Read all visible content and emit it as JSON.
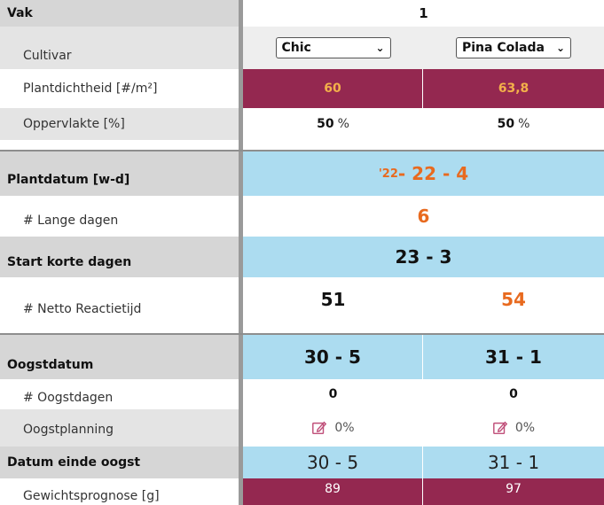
{
  "labels": {
    "vak": "Vak",
    "cultivar": "Cultivar",
    "plantdichtheid": "Plantdichtheid [#/m²]",
    "oppervlakte": "Oppervlakte [%]",
    "plantdatum": "Plantdatum [w-d]",
    "lange_dagen": "# Lange dagen",
    "start_korte_dagen": "Start korte dagen",
    "netto_reactietijd": "# Netto Reactietijd",
    "oogstdatum": "Oogstdatum",
    "oogstdagen": "# Oogstdagen",
    "oogstplanning": "Oogstplanning",
    "datum_einde_oogst": "Datum einde oogst",
    "gewichtsprognose": "Gewichtsprognose [g]"
  },
  "vak_number": "1",
  "col1": {
    "cultivar": "Chic",
    "plantdichtheid": "60",
    "oppervlakte": "50",
    "netto_reactietijd": "51",
    "oogstdatum": "30 - 5",
    "oogstdagen": "0",
    "oogstplanning": "0%",
    "datum_einde_oogst": "30 - 5",
    "gewichtsprognose": "89"
  },
  "col2": {
    "cultivar": "Pina Colada",
    "plantdichtheid": "63,8",
    "oppervlakte": "50",
    "netto_reactietijd": "54",
    "oogstdatum": "31 - 1",
    "oogstdagen": "0",
    "oogstplanning": "0%",
    "datum_einde_oogst": "31 - 1",
    "gewichtsprognose": "97"
  },
  "shared": {
    "plantdatum_year": "'22",
    "plantdatum": " - 22 - 4",
    "lange_dagen": "6",
    "start_korte_dagen": "23 - 3"
  },
  "units": {
    "percent": "%"
  },
  "colors": {
    "header_blue": "#acdcf0",
    "maroon": "#942850",
    "orange": "#e86a1f"
  }
}
